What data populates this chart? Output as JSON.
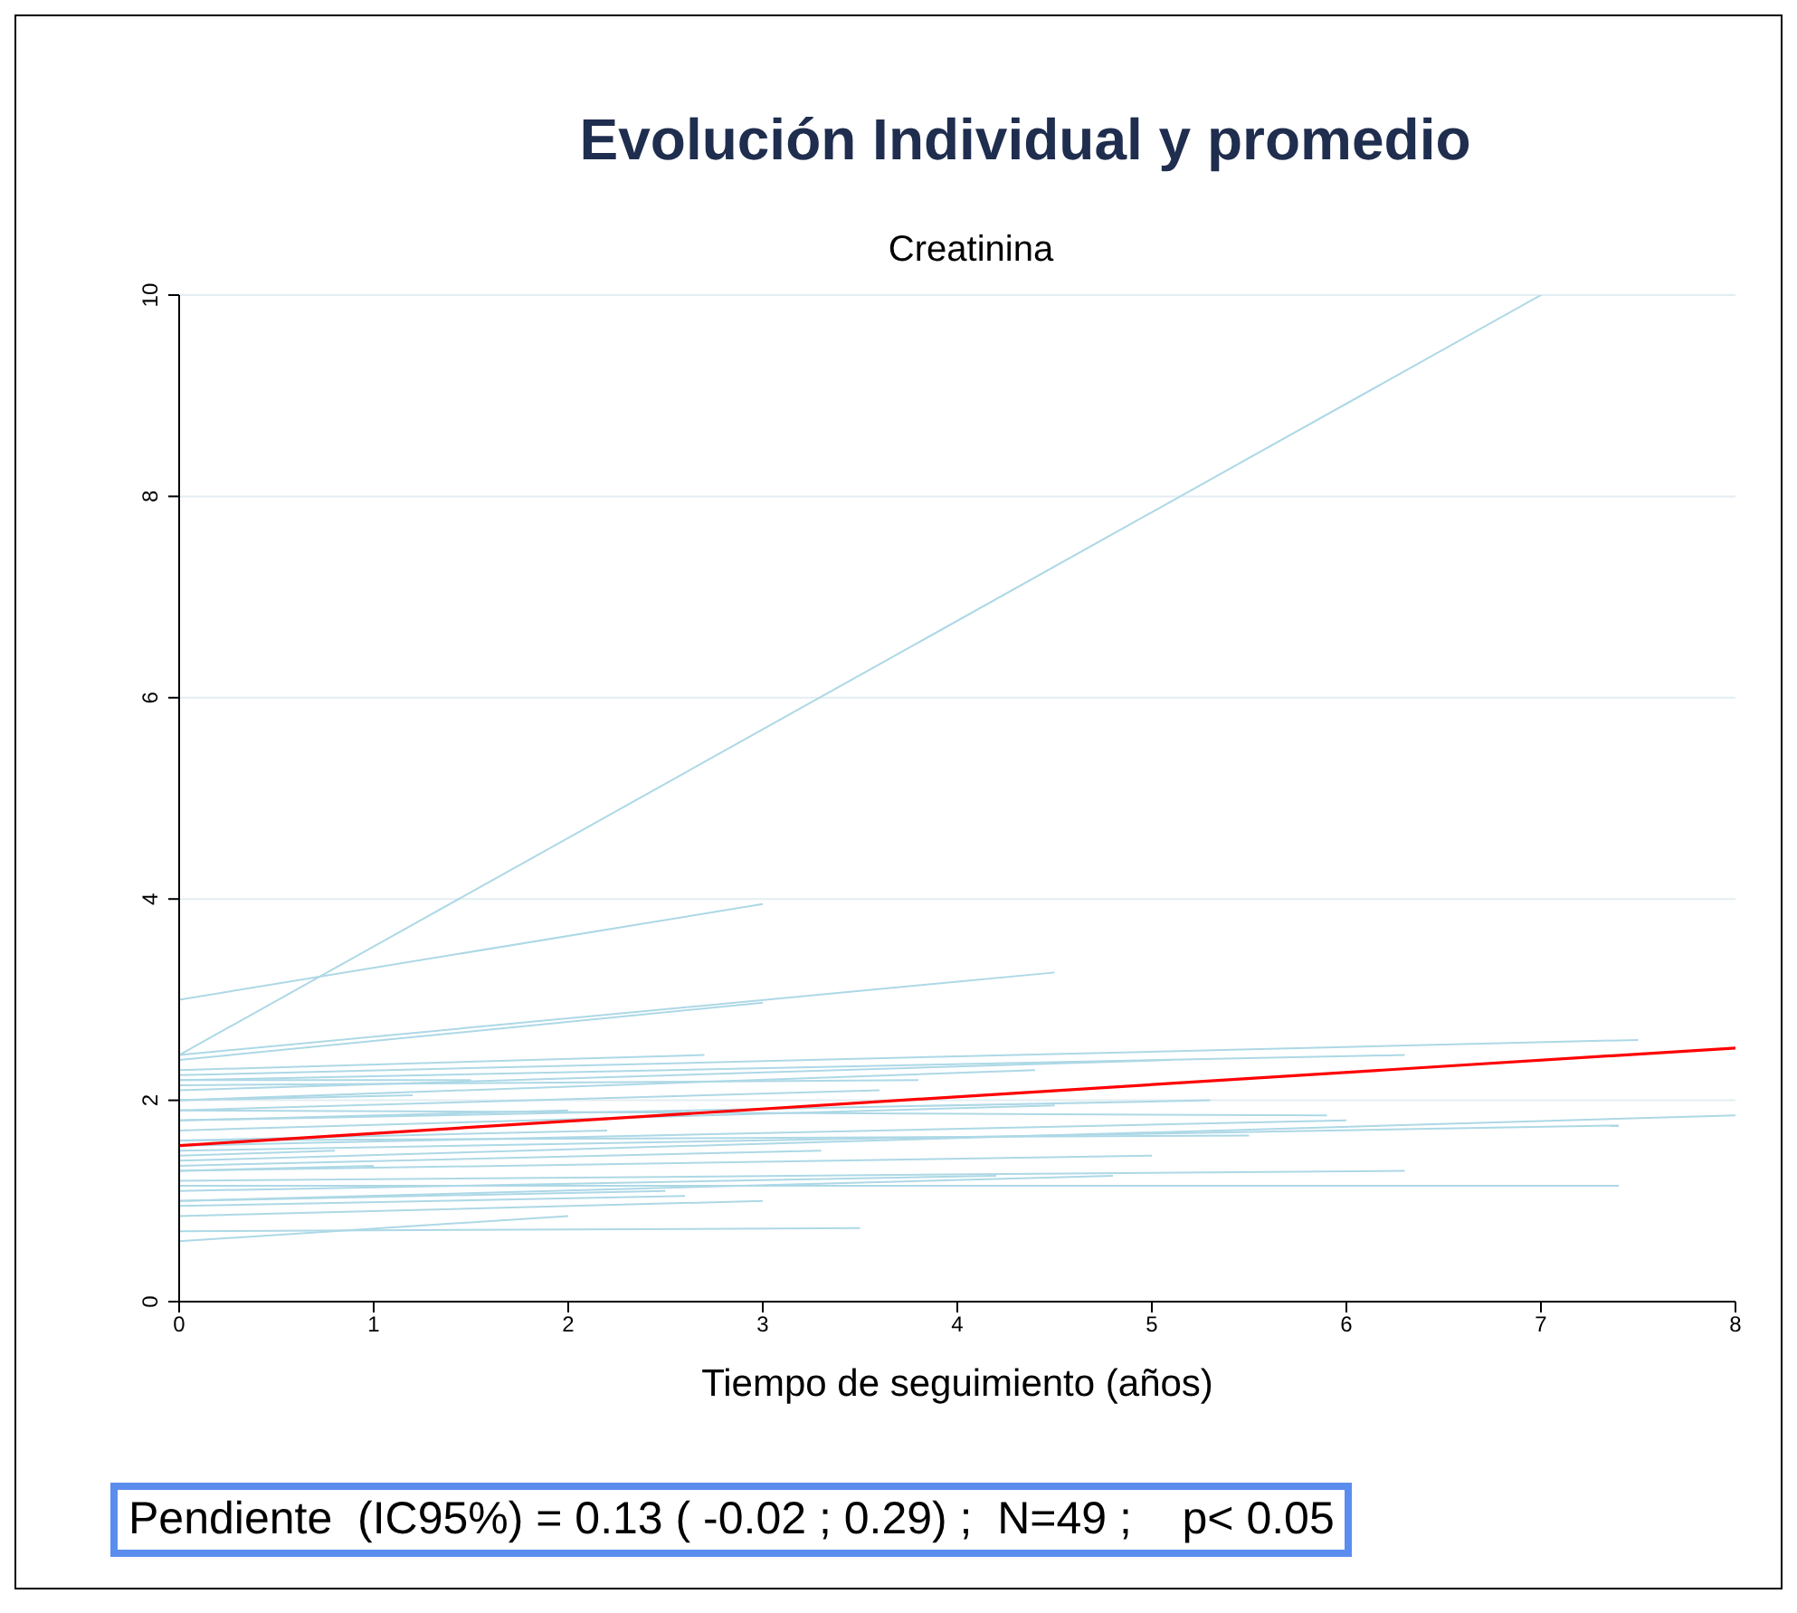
{
  "chart_data": {
    "type": "line",
    "title": "Evolución Individual y promedio",
    "subtitle": "Creatinina",
    "xlabel": "Tiempo de seguimiento (años)",
    "xlim": [
      0,
      8
    ],
    "xticks": [
      0,
      1,
      2,
      3,
      4,
      5,
      6,
      7,
      8
    ],
    "ylim": [
      0,
      10
    ],
    "yticks": [
      0,
      2,
      4,
      6,
      8,
      10
    ],
    "grid": "y",
    "marker": "none",
    "line_style": "solid",
    "annotations": [
      "Pendiente  (IC95%) = 0.13 ( -0.02 ; 0.29) ;  N=49 ;    p< 0.05"
    ],
    "series": [
      {
        "color": "#add8e6",
        "x": [
          0,
          7
        ],
        "values": [
          2.45,
          10
        ]
      },
      {
        "color": "#add8e6",
        "x": [
          0,
          3
        ],
        "values": [
          3.0,
          3.95
        ]
      },
      {
        "color": "#add8e6",
        "x": [
          0,
          4.5
        ],
        "values": [
          2.45,
          3.27
        ]
      },
      {
        "color": "#add8e6",
        "x": [
          0,
          3
        ],
        "values": [
          2.4,
          2.97
        ]
      },
      {
        "color": "#add8e6",
        "x": [
          0,
          2.7
        ],
        "values": [
          2.3,
          2.45
        ]
      },
      {
        "color": "#add8e6",
        "x": [
          0,
          7.5
        ],
        "values": [
          2.25,
          2.6
        ]
      },
      {
        "color": "#add8e6",
        "x": [
          0,
          6.3
        ],
        "values": [
          2.2,
          2.45
        ]
      },
      {
        "color": "#add8e6",
        "x": [
          0,
          5.1
        ],
        "values": [
          2.1,
          2.4
        ]
      },
      {
        "color": "#add8e6",
        "x": [
          0,
          4.4
        ],
        "values": [
          2.0,
          2.3
        ]
      },
      {
        "color": "#add8e6",
        "x": [
          0,
          8
        ],
        "values": [
          1.4,
          1.85
        ]
      },
      {
        "color": "#add8e6",
        "x": [
          0,
          7.4
        ],
        "values": [
          1.5,
          1.75
        ]
      },
      {
        "color": "#add8e6",
        "x": [
          0,
          7.4
        ],
        "values": [
          1.15,
          1.15
        ]
      },
      {
        "color": "#add8e6",
        "x": [
          0,
          6.3
        ],
        "values": [
          1.2,
          1.3
        ]
      },
      {
        "color": "#add8e6",
        "x": [
          0,
          5.9
        ],
        "values": [
          1.9,
          1.85
        ]
      },
      {
        "color": "#add8e6",
        "x": [
          0,
          5.5
        ],
        "values": [
          1.6,
          1.65
        ]
      },
      {
        "color": "#add8e6",
        "x": [
          0,
          5.0
        ],
        "values": [
          1.3,
          1.45
        ]
      },
      {
        "color": "#add8e6",
        "x": [
          0,
          4.5
        ],
        "values": [
          1.7,
          1.95
        ]
      },
      {
        "color": "#add8e6",
        "x": [
          0,
          3.5
        ],
        "values": [
          0.7,
          0.73
        ]
      },
      {
        "color": "#add8e6",
        "x": [
          0,
          2.0
        ],
        "values": [
          0.6,
          0.85
        ]
      },
      {
        "color": "#add8e6",
        "x": [
          0,
          3.0
        ],
        "values": [
          0.85,
          1.0
        ]
      },
      {
        "color": "#add8e6",
        "x": [
          0,
          2.5
        ],
        "values": [
          1.0,
          1.1
        ]
      },
      {
        "color": "#add8e6",
        "x": [
          0,
          1.0
        ],
        "values": [
          1.3,
          1.35
        ]
      },
      {
        "color": "#add8e6",
        "x": [
          0,
          1.5
        ],
        "values": [
          2.2,
          2.2
        ]
      },
      {
        "color": "#add8e6",
        "x": [
          0,
          2.0
        ],
        "values": [
          1.8,
          1.9
        ]
      },
      {
        "color": "#add8e6",
        "x": [
          0,
          3.8
        ],
        "values": [
          2.15,
          2.2
        ]
      },
      {
        "color": "#add8e6",
        "x": [
          0,
          4.2
        ],
        "values": [
          1.1,
          1.25
        ]
      },
      {
        "color": "#add8e6",
        "x": [
          0,
          3.3
        ],
        "values": [
          1.35,
          1.5
        ]
      },
      {
        "color": "#add8e6",
        "x": [
          0,
          2.2
        ],
        "values": [
          1.6,
          1.7
        ]
      },
      {
        "color": "#add8e6",
        "x": [
          0,
          1.2
        ],
        "values": [
          2.0,
          2.05
        ]
      },
      {
        "color": "#add8e6",
        "x": [
          0,
          4.8
        ],
        "values": [
          1.0,
          1.25
        ]
      },
      {
        "color": "#add8e6",
        "x": [
          0,
          5.3
        ],
        "values": [
          1.8,
          2.0
        ]
      },
      {
        "color": "#add8e6",
        "x": [
          0,
          0.8
        ],
        "values": [
          1.45,
          1.5
        ]
      },
      {
        "color": "#add8e6",
        "x": [
          0,
          6.0
        ],
        "values": [
          1.55,
          1.8
        ]
      },
      {
        "color": "#add8e6",
        "x": [
          0,
          3.6
        ],
        "values": [
          1.9,
          2.1
        ]
      },
      {
        "color": "#add8e6",
        "x": [
          0,
          2.6
        ],
        "values": [
          0.95,
          1.05
        ]
      },
      {
        "color": "#ff0000",
        "x": [
          0,
          8
        ],
        "values": [
          1.55,
          2.52
        ]
      }
    ]
  }
}
